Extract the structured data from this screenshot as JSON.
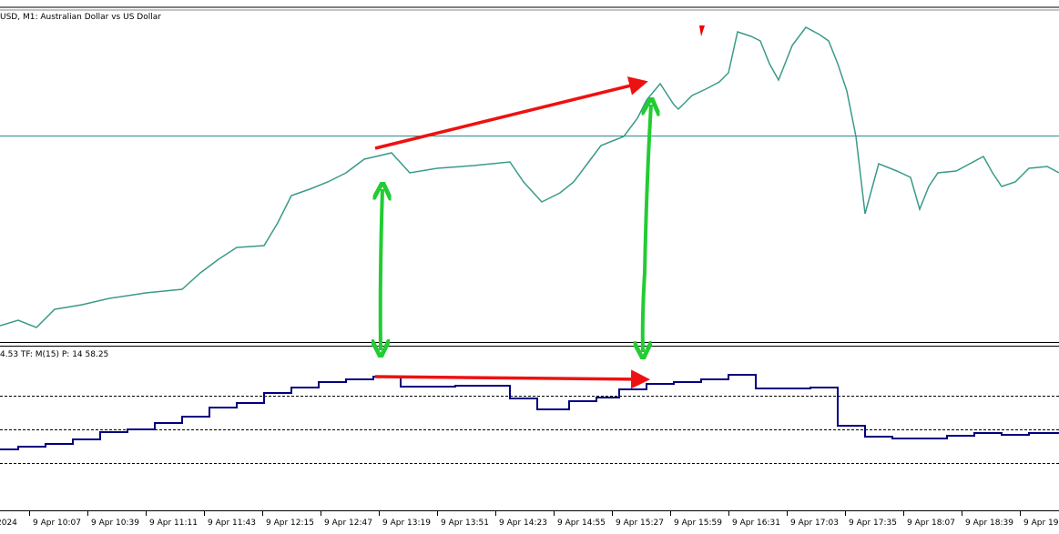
{
  "header": {
    "title": "USD, M1:  Australian Dollar vs US Dollar"
  },
  "indicator": {
    "label": "4.53 TF: M(15) P: 14 58.25"
  },
  "time_axis": {
    "labels": [
      "2024",
      "9 Apr 10:07",
      "9 Apr 10:39",
      "9 Apr 11:11",
      "9 Apr 11:43",
      "9 Apr 12:15",
      "9 Apr 12:47",
      "9 Apr 13:19",
      "9 Apr 13:51",
      "9 Apr 14:23",
      "9 Apr 14:55",
      "9 Apr 15:27",
      "9 Apr 15:59",
      "9 Apr 16:31",
      "9 Apr 17:03",
      "9 Apr 17:35",
      "9 Apr 18:07",
      "9 Apr 18:39",
      "9 Apr 19:1"
    ]
  }
}
